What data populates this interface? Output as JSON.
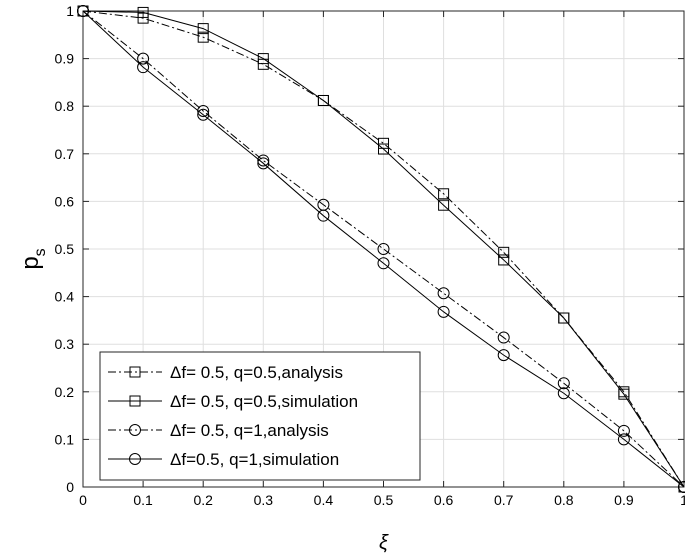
{
  "chart_data": {
    "type": "line",
    "xlabel": "ξ",
    "ylabel_main": "p",
    "ylabel_sub": "s",
    "xlim": [
      0,
      1
    ],
    "ylim": [
      0,
      1
    ],
    "x_ticks": [
      0,
      0.1,
      0.2,
      0.3,
      0.4,
      0.5,
      0.6,
      0.7,
      0.8,
      0.9,
      1
    ],
    "x_tick_labels": [
      "0",
      "0.1",
      "0.2",
      "0.3",
      "0.4",
      "0.5",
      "0.6",
      "0.7",
      "0.8",
      "0.9",
      "1"
    ],
    "y_ticks": [
      0,
      0.1,
      0.2,
      0.3,
      0.4,
      0.5,
      0.6,
      0.7,
      0.8,
      0.9,
      1
    ],
    "y_tick_labels": [
      "0",
      "0.1",
      "0.2",
      "0.3",
      "0.4",
      "0.5",
      "0.6",
      "0.7",
      "0.8",
      "0.9",
      "1"
    ],
    "grid": true,
    "legend_position": "bottom-left",
    "x": [
      0,
      0.1,
      0.2,
      0.3,
      0.4,
      0.5,
      0.6,
      0.7,
      0.8,
      0.9,
      1
    ],
    "series": [
      {
        "name": "Δf= 0.5, q=0.5,analysis",
        "marker": "square",
        "line": "dashdot",
        "values": [
          1,
          0.985,
          0.945,
          0.888,
          0.812,
          0.722,
          0.616,
          0.493,
          0.355,
          0.2,
          0
        ]
      },
      {
        "name": "Δf= 0.5, q=0.5,simulation",
        "marker": "square",
        "line": "solid",
        "values": [
          1,
          0.997,
          0.963,
          0.9,
          0.812,
          0.71,
          0.592,
          0.477,
          0.355,
          0.195,
          0
        ]
      },
      {
        "name": "Δf= 0.5, q=1,analysis",
        "marker": "circle",
        "line": "dashdot",
        "values": [
          1,
          0.9,
          0.79,
          0.686,
          0.593,
          0.5,
          0.407,
          0.314,
          0.218,
          0.118,
          0
        ]
      },
      {
        "name": "Δf=0.5, q=1,simulation",
        "marker": "circle",
        "line": "solid",
        "values": [
          1,
          0.882,
          0.782,
          0.68,
          0.57,
          0.47,
          0.368,
          0.277,
          0.197,
          0.1,
          0
        ]
      }
    ]
  }
}
